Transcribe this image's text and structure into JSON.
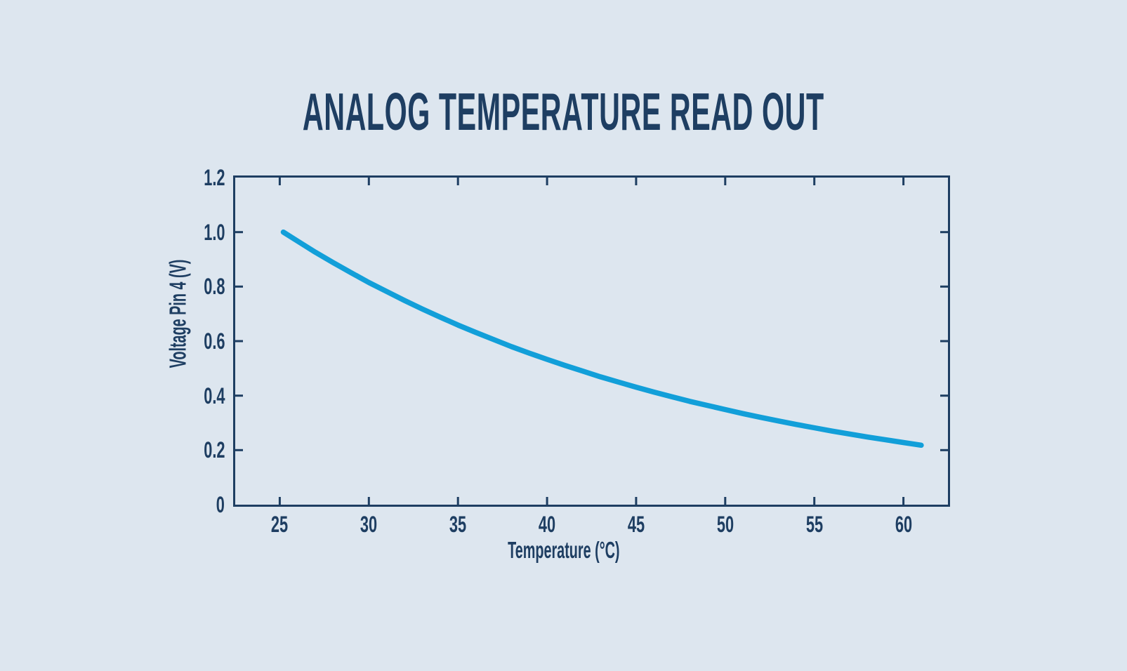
{
  "colors": {
    "background": "#dde6ef",
    "navy": "#1e3e62",
    "curve": "#129fd9"
  },
  "chart_data": {
    "type": "line",
    "title": "ANALOG TEMPERATURE READ OUT",
    "xlabel": "Temperature (°C)",
    "ylabel": "Voltage Pin 4 (V)",
    "xlim": [
      22.5,
      62.5
    ],
    "ylim": [
      0,
      1.2
    ],
    "x_ticks": [
      25,
      30,
      35,
      40,
      45,
      50,
      55,
      60
    ],
    "x_tick_labels": [
      "25",
      "30",
      "35",
      "40",
      "45",
      "50",
      "55",
      "60"
    ],
    "y_ticks": [
      0,
      0.2,
      0.4,
      0.6,
      0.8,
      1.0,
      1.2
    ],
    "y_tick_labels": [
      "0",
      "0.2",
      "0.4",
      "0.6",
      "0.8",
      "1.0",
      "1.2"
    ],
    "grid": false,
    "legend": null,
    "frame": "closed box with inward tick marks mirrored on all four sides",
    "series": [
      {
        "name": "Voltage Pin 4",
        "color": "#129fd9",
        "points": [
          [
            25.2,
            1.0
          ],
          [
            26,
            0.967
          ],
          [
            27,
            0.926
          ],
          [
            28,
            0.888
          ],
          [
            29,
            0.851
          ],
          [
            30,
            0.815
          ],
          [
            31,
            0.782
          ],
          [
            32,
            0.749
          ],
          [
            33,
            0.718
          ],
          [
            34,
            0.688
          ],
          [
            35,
            0.659
          ],
          [
            36,
            0.632
          ],
          [
            37,
            0.606
          ],
          [
            38,
            0.58
          ],
          [
            39,
            0.556
          ],
          [
            40,
            0.533
          ],
          [
            41,
            0.511
          ],
          [
            42,
            0.49
          ],
          [
            43,
            0.469
          ],
          [
            44,
            0.45
          ],
          [
            45,
            0.431
          ],
          [
            46,
            0.413
          ],
          [
            47,
            0.396
          ],
          [
            48,
            0.379
          ],
          [
            49,
            0.364
          ],
          [
            50,
            0.349
          ],
          [
            51,
            0.334
          ],
          [
            52,
            0.32
          ],
          [
            53,
            0.307
          ],
          [
            54,
            0.294
          ],
          [
            55,
            0.282
          ],
          [
            56,
            0.27
          ],
          [
            57,
            0.259
          ],
          [
            58,
            0.248
          ],
          [
            59,
            0.238
          ],
          [
            60,
            0.228
          ],
          [
            61,
            0.218
          ]
        ]
      }
    ]
  }
}
